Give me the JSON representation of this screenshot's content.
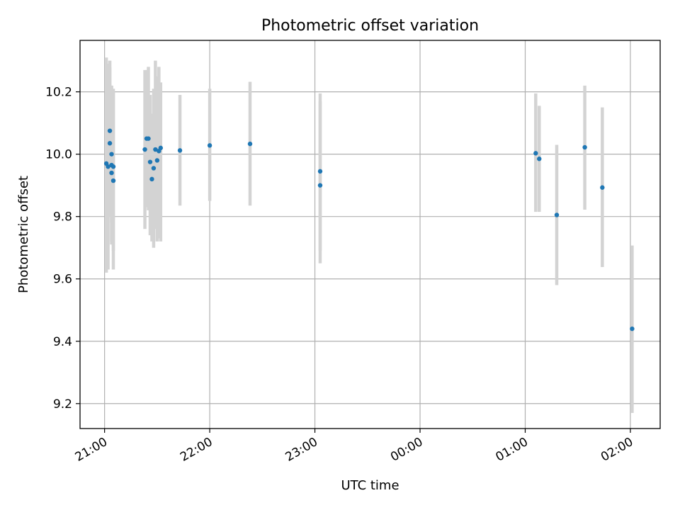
{
  "chart_data": {
    "type": "scatter",
    "title": "Photometric offset variation",
    "xlabel": "UTC time",
    "ylabel": "Photometric offset",
    "x_ticks": [
      "20:00",
      "21:00",
      "22:00",
      "23:00",
      "00:00",
      "01:00",
      "02:00"
    ],
    "x_tick_labels": [
      "21:00",
      "22:00",
      "23:00",
      "00:00",
      "01:00",
      "02:00"
    ],
    "y_ticks": [
      9.2,
      9.4,
      9.6,
      9.8,
      10.0,
      10.2
    ],
    "y_tick_labels": [
      "9.2",
      "9.4",
      "9.6",
      "9.8",
      "10.0",
      "10.2"
    ],
    "xlim": [
      "20:46",
      "02:17"
    ],
    "ylim": [
      9.12,
      10.365
    ],
    "grid": true,
    "colors": {
      "marker": "#1f77b4",
      "errorbar": "#d3d3d3"
    },
    "series": [
      {
        "points": [
          {
            "x": "21:01",
            "y": 9.97,
            "err_low": 9.62,
            "err_high": 10.31
          },
          {
            "x": "21:02",
            "y": 9.96,
            "err_low": 9.63,
            "err_high": 10.29
          },
          {
            "x": "21:03",
            "y": 10.075,
            "err_low": 9.85,
            "err_high": 10.3
          },
          {
            "x": "21:03",
            "y": 10.035,
            "err_low": 9.8,
            "err_high": 10.28
          },
          {
            "x": "21:04",
            "y": 10.0,
            "err_low": 9.78,
            "err_high": 10.22
          },
          {
            "x": "21:04",
            "y": 9.965,
            "err_low": 9.72,
            "err_high": 10.22
          },
          {
            "x": "21:04",
            "y": 9.94,
            "err_low": 9.71,
            "err_high": 10.17
          },
          {
            "x": "21:05",
            "y": 9.96,
            "err_low": 9.69,
            "err_high": 10.21
          },
          {
            "x": "21:05",
            "y": 9.915,
            "err_low": 9.63,
            "err_high": 10.2
          },
          {
            "x": "21:23",
            "y": 10.015,
            "err_low": 9.76,
            "err_high": 10.27
          },
          {
            "x": "21:24",
            "y": 10.05,
            "err_low": 9.83,
            "err_high": 10.27
          },
          {
            "x": "21:25",
            "y": 10.05,
            "err_low": 9.82,
            "err_high": 10.28
          },
          {
            "x": "21:26",
            "y": 9.975,
            "err_low": 9.74,
            "err_high": 10.19
          },
          {
            "x": "21:27",
            "y": 9.92,
            "err_low": 9.72,
            "err_high": 10.13
          },
          {
            "x": "21:28",
            "y": 9.955,
            "err_low": 9.7,
            "err_high": 10.21
          },
          {
            "x": "21:29",
            "y": 10.015,
            "err_low": 9.76,
            "err_high": 10.3
          },
          {
            "x": "21:30",
            "y": 9.98,
            "err_low": 9.72,
            "err_high": 10.25
          },
          {
            "x": "21:31",
            "y": 10.01,
            "err_low": 9.73,
            "err_high": 10.28
          },
          {
            "x": "21:32",
            "y": 10.02,
            "err_low": 9.72,
            "err_high": 10.23
          },
          {
            "x": "21:43",
            "y": 10.012,
            "err_low": 9.835,
            "err_high": 10.19
          },
          {
            "x": "22:00",
            "y": 10.028,
            "err_low": 9.85,
            "err_high": 10.21
          },
          {
            "x": "22:23",
            "y": 10.033,
            "err_low": 9.835,
            "err_high": 10.232
          },
          {
            "x": "23:03",
            "y": 9.9,
            "err_low": 9.65,
            "err_high": 10.17
          },
          {
            "x": "23:03",
            "y": 9.945,
            "err_low": 9.69,
            "err_high": 10.195
          },
          {
            "x": "01:06",
            "y": 10.003,
            "err_low": 9.815,
            "err_high": 10.195
          },
          {
            "x": "01:08",
            "y": 9.985,
            "err_low": 9.815,
            "err_high": 10.155
          },
          {
            "x": "01:18",
            "y": 9.805,
            "err_low": 9.58,
            "err_high": 10.03
          },
          {
            "x": "01:34",
            "y": 10.022,
            "err_low": 9.822,
            "err_high": 10.22
          },
          {
            "x": "01:44",
            "y": 9.893,
            "err_low": 9.638,
            "err_high": 10.15
          },
          {
            "x": "02:01",
            "y": 9.44,
            "err_low": 9.17,
            "err_high": 9.707
          }
        ]
      }
    ]
  }
}
